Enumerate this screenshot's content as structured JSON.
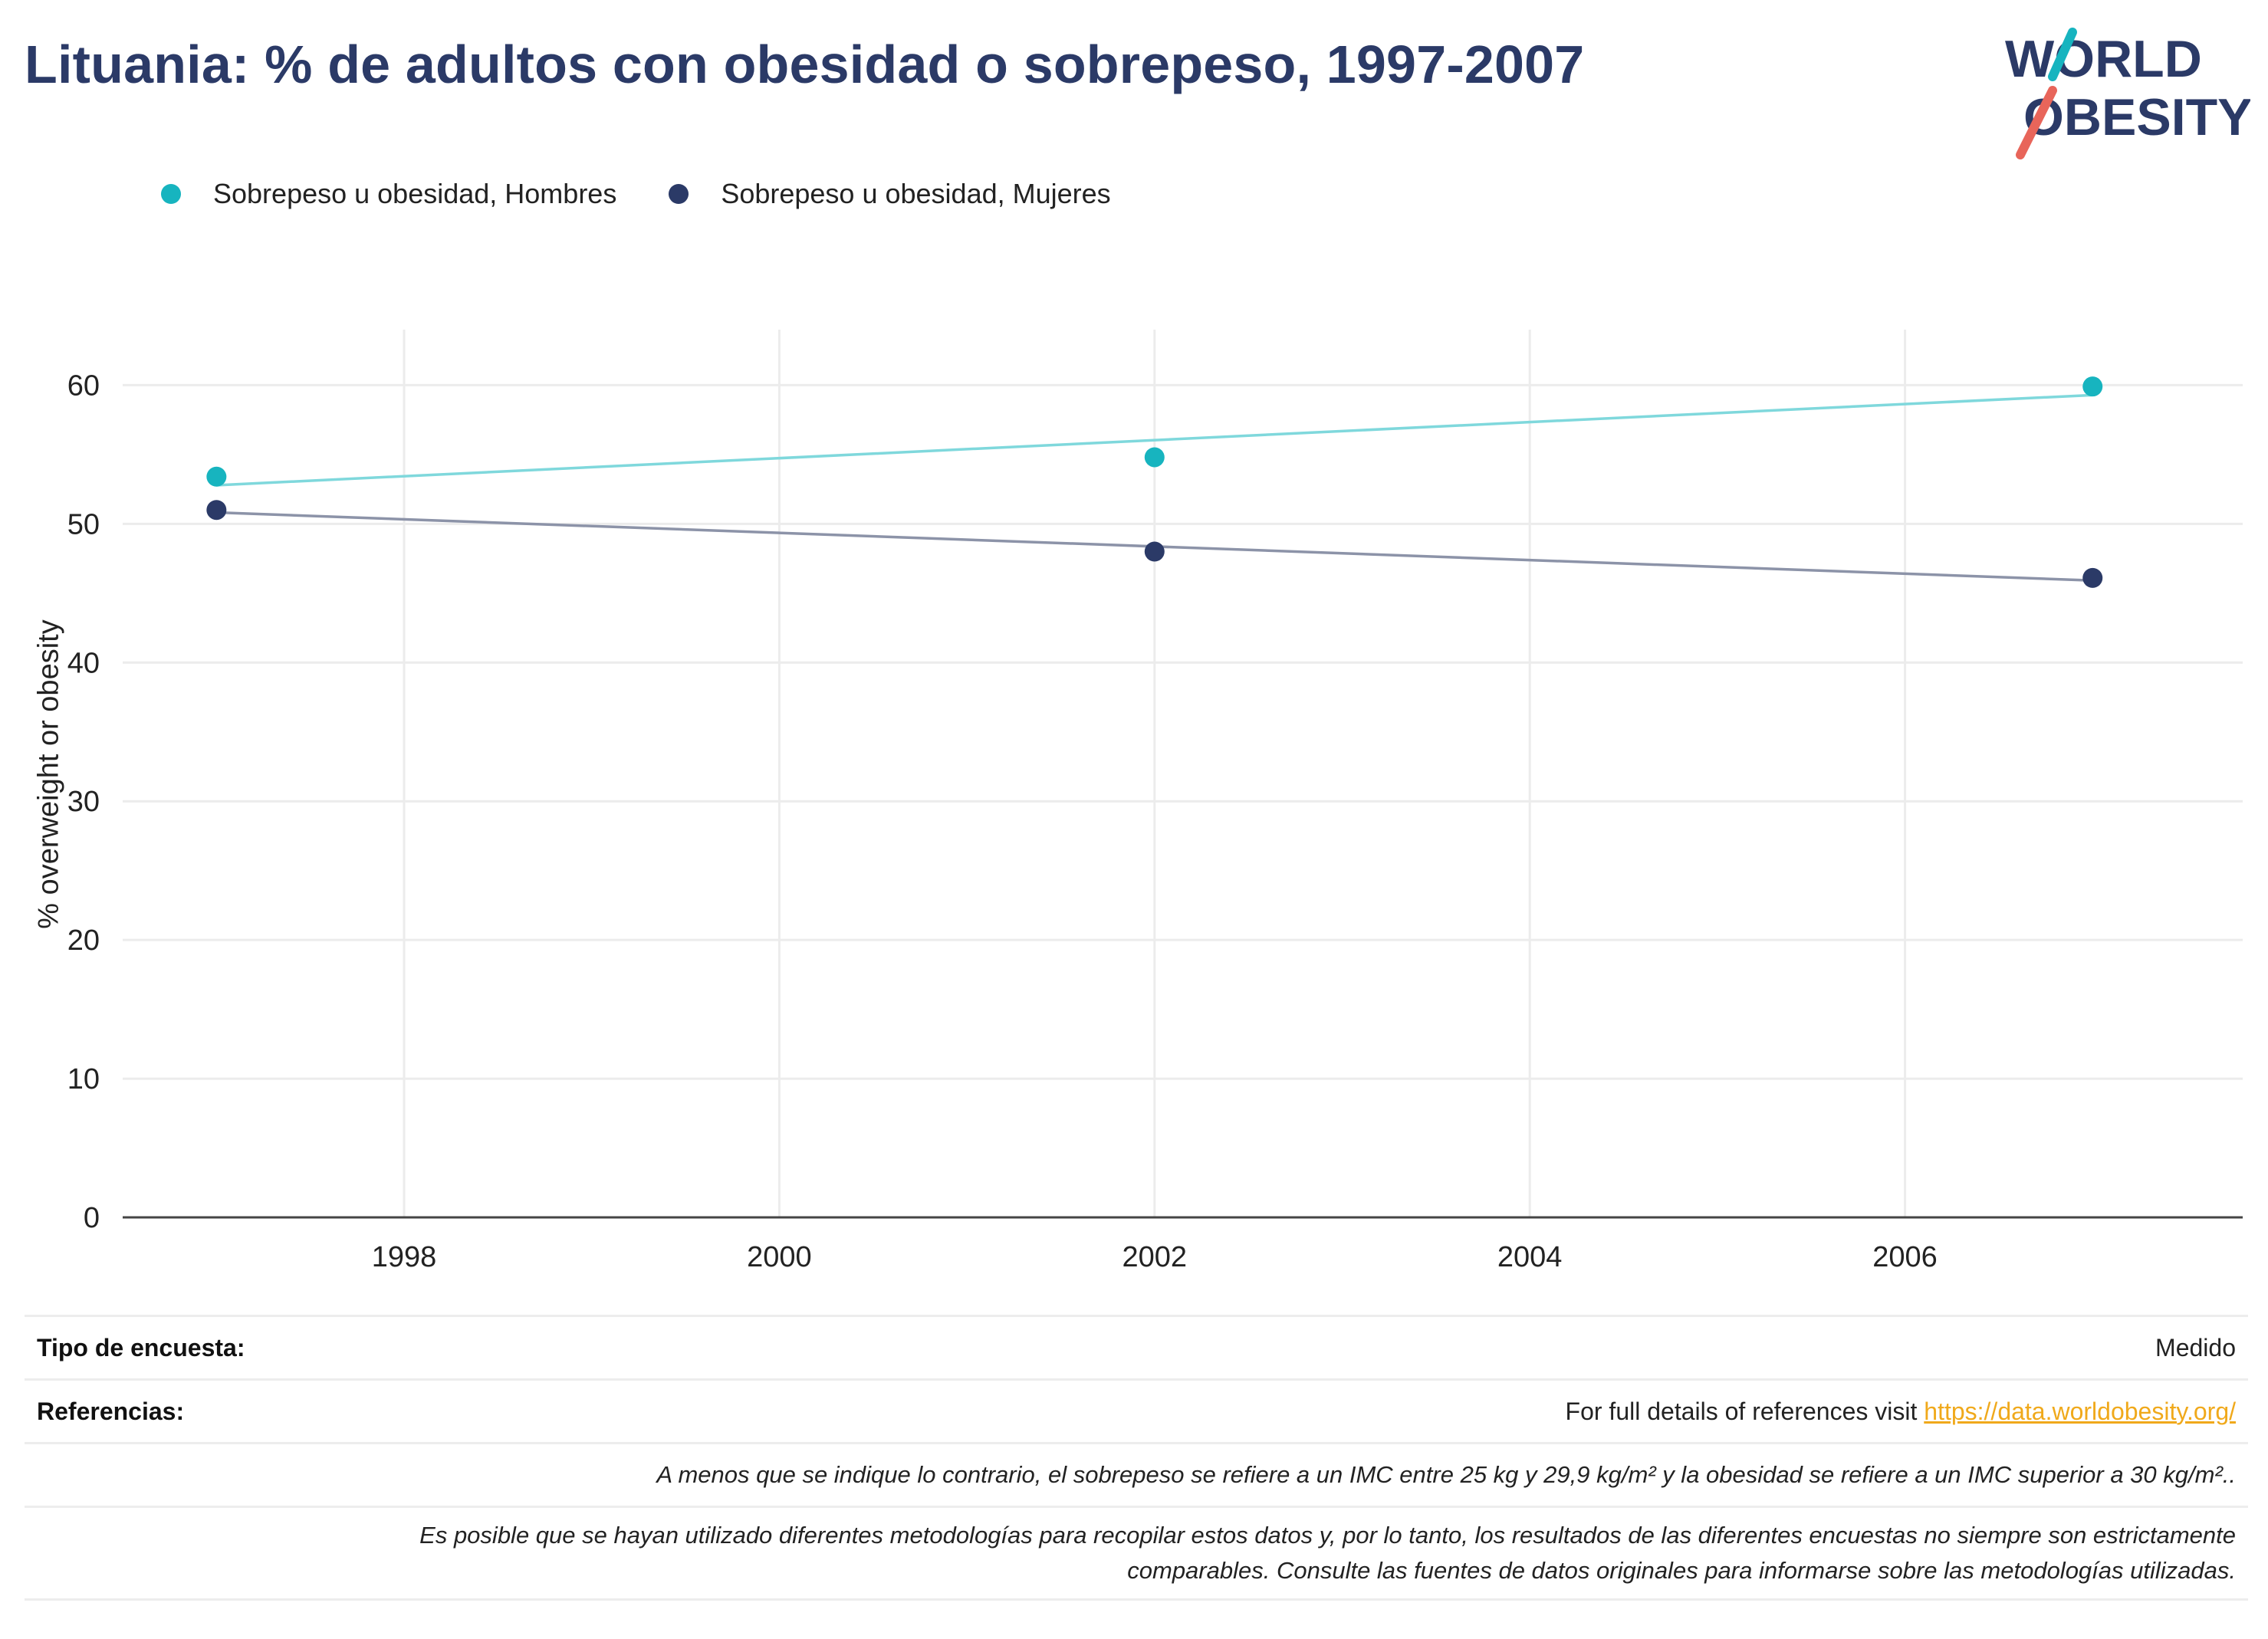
{
  "title": "Lituania: % de adultos con obesidad o sobrepeso, 1997-2007",
  "logo": {
    "line1": "WORLD",
    "line2": "OBESITY"
  },
  "colors": {
    "men": "#17b4bf",
    "women": "#2b3a67",
    "men_trend": "#7fd8dc",
    "women_trend": "#8c93a8",
    "link": "#f0a91b",
    "title": "#2b3a67"
  },
  "chart_data": {
    "type": "scatter",
    "title": "Lituania: % de adultos con obesidad o sobrepeso, 1997-2007",
    "xlabel": "",
    "ylabel": "% overweight or obesity",
    "xlim": [
      1996.5,
      2007.8
    ],
    "ylim": [
      0,
      64
    ],
    "xticks": [
      1998,
      2000,
      2002,
      2004,
      2006
    ],
    "yticks": [
      0,
      10,
      20,
      30,
      40,
      50,
      60
    ],
    "grid": true,
    "legend_position": "top-left",
    "trendlines": true,
    "series": [
      {
        "name": "Sobrepeso u obesidad, Hombres",
        "color": "#17b4bf",
        "trend_color": "#7fd8dc",
        "x": [
          1997,
          2002,
          2007
        ],
        "y": [
          53.4,
          54.8,
          59.9
        ]
      },
      {
        "name": "Sobrepeso u obesidad, Mujeres",
        "color": "#2b3a67",
        "trend_color": "#8c93a8",
        "x": [
          1997,
          2002,
          2007
        ],
        "y": [
          51.0,
          48.0,
          46.1
        ]
      }
    ]
  },
  "info": {
    "survey_type_label": "Tipo de encuesta:",
    "survey_type_value": "Medido",
    "references_label": "Referencias:",
    "references_text": "For full details of references visit ",
    "references_link": "https://data.worldobesity.org/",
    "note_bmi": "A menos que se indique lo contrario, el sobrepeso se refiere a un IMC entre 25 kg y 29,9 kg/m² y la obesidad se refiere a un IMC superior a 30 kg/m²..",
    "note_methods_1": "Es posible que se hayan utilizado diferentes metodologías para recopilar estos datos y, por lo tanto, los resultados de las diferentes encuestas no siempre son estrictamente",
    "note_methods_2": "comparables. Consulte las fuentes de datos originales para informarse sobre las metodologías utilizadas."
  }
}
